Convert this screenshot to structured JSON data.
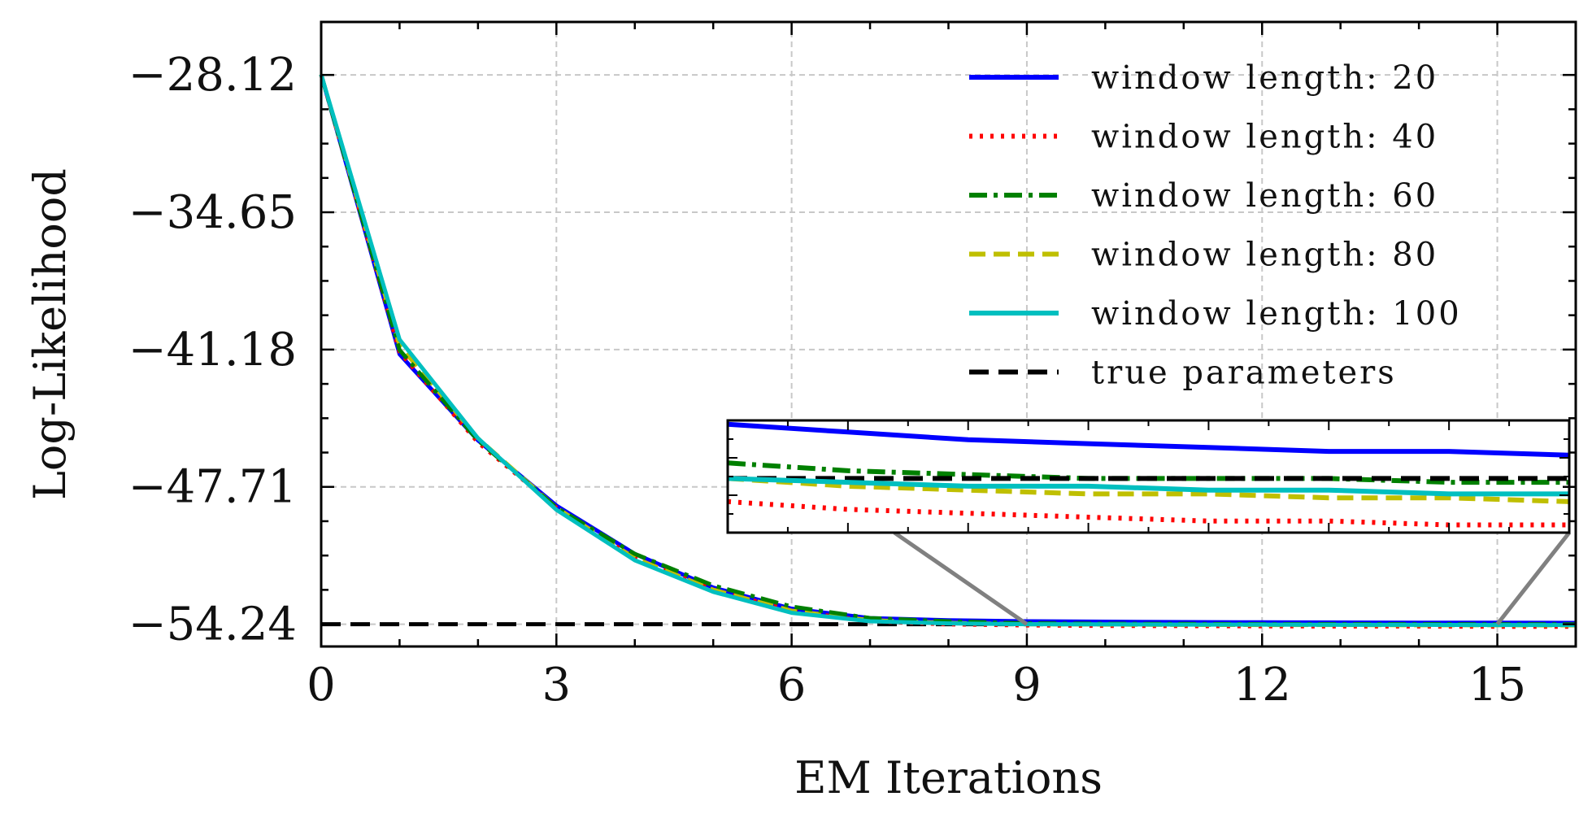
{
  "chart_data": {
    "type": "line",
    "xlabel": "EM Iterations",
    "ylabel": "Log-Likelihood",
    "xlim": [
      0,
      16
    ],
    "ylim": [
      -55.3,
      -25.6
    ],
    "x_ticks": [
      0,
      3,
      6,
      9,
      12,
      15
    ],
    "x_tick_labels": [
      "0",
      "3",
      "6",
      "9",
      "12",
      "15"
    ],
    "y_ticks": [
      -28.12,
      -34.65,
      -41.18,
      -47.71,
      -54.24
    ],
    "y_tick_labels": [
      "−28.12",
      "−34.65",
      "−41.18",
      "−47.71",
      "−54.24"
    ],
    "grid": true,
    "legend_position": "top-right",
    "x": [
      0,
      1,
      2,
      3,
      4,
      5,
      6,
      7,
      8,
      9,
      10,
      11,
      12,
      13,
      14,
      15,
      16
    ],
    "series": [
      {
        "name": "window length: 20",
        "color": "#0000ff",
        "style": "solid",
        "values": [
          -28.1,
          -41.4,
          -45.5,
          -48.6,
          -50.9,
          -52.5,
          -53.5,
          -53.95,
          -54.05,
          -54.1,
          -54.12,
          -54.14,
          -54.15,
          -54.16,
          -54.17,
          -54.17,
          -54.18
        ]
      },
      {
        "name": "window length: 40",
        "color": "#ff0000",
        "style": "dotted",
        "values": [
          -28.1,
          -41.3,
          -45.6,
          -48.7,
          -51.1,
          -52.6,
          -53.6,
          -54.1,
          -54.25,
          -54.3,
          -54.32,
          -54.33,
          -54.34,
          -54.35,
          -54.35,
          -54.36,
          -54.36
        ]
      },
      {
        "name": "window length: 60",
        "color": "#008000",
        "style": "dashdot",
        "values": [
          -28.1,
          -41.2,
          -45.5,
          -48.7,
          -50.9,
          -52.4,
          -53.4,
          -53.95,
          -54.1,
          -54.2,
          -54.22,
          -54.23,
          -54.24,
          -54.24,
          -54.24,
          -54.25,
          -54.25
        ]
      },
      {
        "name": "window length: 80",
        "color": "#bfbf00",
        "style": "dashed",
        "values": [
          -28.1,
          -41.0,
          -45.4,
          -48.7,
          -51.1,
          -52.6,
          -53.6,
          -54.05,
          -54.18,
          -54.24,
          -54.26,
          -54.27,
          -54.28,
          -54.28,
          -54.29,
          -54.29,
          -54.3
        ]
      },
      {
        "name": "window length: 100",
        "color": "#00bfbf",
        "style": "solid",
        "values": [
          -28.1,
          -40.7,
          -45.4,
          -48.8,
          -51.2,
          -52.7,
          -53.7,
          -54.1,
          -54.2,
          -54.24,
          -54.25,
          -54.26,
          -54.26,
          -54.27,
          -54.27,
          -54.28,
          -54.28
        ]
      },
      {
        "name": "true parameters",
        "color": "#000000",
        "style": "dashed-black",
        "values": [
          -54.24,
          -54.24,
          -54.24,
          -54.24,
          -54.24,
          -54.24,
          -54.24,
          -54.24,
          -54.24,
          -54.24,
          -54.24,
          -54.24,
          -54.24,
          -54.24,
          -54.24,
          -54.24,
          -54.24
        ]
      }
    ],
    "inset": {
      "xlim": [
        9,
        16
      ],
      "ylim": [
        -54.38,
        -54.09
      ],
      "connector_color": "#808080"
    }
  }
}
